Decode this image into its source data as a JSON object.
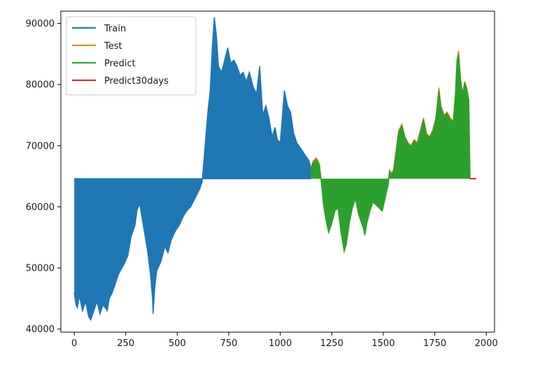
{
  "chart_data": {
    "type": "area",
    "title": "",
    "xlabel": "",
    "ylabel": "",
    "xlim": [
      -65,
      2040
    ],
    "ylim": [
      39500,
      92000
    ],
    "xticks": [
      0,
      250,
      500,
      750,
      1000,
      1250,
      1500,
      1750,
      2000
    ],
    "xtick_labels": [
      "0",
      "250",
      "500",
      "750",
      "1000",
      "1250",
      "1500",
      "1750",
      "2000"
    ],
    "yticks": [
      40000,
      50000,
      60000,
      70000,
      80000,
      90000
    ],
    "ytick_labels": [
      "40000",
      "50000",
      "60000",
      "70000",
      "80000",
      "90000"
    ],
    "baseline": 64600,
    "grid": false,
    "legend_position": "top-left",
    "series": [
      {
        "name": "Train",
        "color": "#1f77b4",
        "x": [
          0,
          8,
          15,
          25,
          40,
          55,
          70,
          80,
          95,
          110,
          125,
          140,
          160,
          170,
          185,
          200,
          215,
          240,
          260,
          275,
          295,
          305,
          318,
          330,
          340,
          355,
          370,
          380,
          383,
          390,
          400,
          420,
          440,
          455,
          470,
          490,
          510,
          530,
          550,
          565,
          580,
          595,
          610,
          620,
          628,
          640,
          650,
          660,
          670,
          680,
          690,
          700,
          715,
          730,
          745,
          760,
          775,
          790,
          805,
          820,
          835,
          850,
          870,
          885,
          900,
          915,
          930,
          945,
          960,
          975,
          985,
          1000,
          1020,
          1035,
          1050,
          1065,
          1080,
          1100,
          1120,
          1140,
          1150
        ],
        "values": [
          46000,
          44000,
          43500,
          45500,
          43000,
          44500,
          42000,
          41500,
          43000,
          44500,
          42500,
          44000,
          43000,
          45000,
          46000,
          47500,
          49000,
          50500,
          52000,
          55000,
          57000,
          59500,
          60500,
          58000,
          56000,
          53000,
          49000,
          45000,
          42500,
          46500,
          49500,
          51000,
          53500,
          52500,
          54500,
          56000,
          57000,
          58500,
          59500,
          60000,
          61000,
          62000,
          63000,
          64000,
          67000,
          72000,
          76000,
          79000,
          86000,
          91000,
          88000,
          83000,
          82000,
          84000,
          86000,
          83500,
          84000,
          83000,
          81500,
          82000,
          80500,
          82000,
          79500,
          78500,
          83000,
          75000,
          76500,
          74500,
          71500,
          73000,
          71000,
          70500,
          79000,
          76500,
          75500,
          72000,
          70500,
          69500,
          68500,
          67500,
          66000
        ]
      },
      {
        "name": "Test",
        "color": "#ff7f0e",
        "x": [
          1150,
          1160,
          1175,
          1190,
          1200,
          1210,
          1222,
          1235,
          1250,
          1265,
          1280,
          1295,
          1305,
          1310,
          1320,
          1335,
          1350,
          1365,
          1380,
          1395,
          1405,
          1410,
          1420,
          1435,
          1450,
          1465,
          1480,
          1495,
          1505,
          1515,
          1525,
          1530,
          1540,
          1550,
          1565,
          1575,
          1590,
          1605,
          1620,
          1635,
          1650,
          1665,
          1680,
          1695,
          1710,
          1725,
          1740,
          1755,
          1770,
          1780,
          1795,
          1810,
          1825,
          1840,
          1850,
          1858,
          1865,
          1875,
          1885,
          1895,
          1905,
          1915,
          1921
        ],
        "values": [
          66500,
          67500,
          68000,
          67000,
          64000,
          60500,
          58000,
          56000,
          57500,
          59500,
          60000,
          56000,
          54000,
          52500,
          54000,
          57500,
          60000,
          61500,
          59000,
          57500,
          56500,
          55500,
          57500,
          59500,
          61000,
          60500,
          60000,
          59500,
          61000,
          62500,
          64000,
          66000,
          65500,
          66000,
          70000,
          72500,
          73500,
          71500,
          70500,
          70000,
          71000,
          70500,
          72500,
          74500,
          72000,
          71500,
          72500,
          74500,
          79500,
          76500,
          75000,
          75500,
          74500,
          74000,
          78500,
          84000,
          85500,
          81000,
          78500,
          80500,
          79500,
          77500,
          64500
        ]
      },
      {
        "name": "Predict",
        "color": "#2ca02c",
        "x": [
          1150,
          1160,
          1175,
          1190,
          1200,
          1210,
          1222,
          1235,
          1250,
          1265,
          1280,
          1295,
          1305,
          1310,
          1320,
          1335,
          1350,
          1365,
          1380,
          1395,
          1405,
          1410,
          1420,
          1435,
          1450,
          1465,
          1480,
          1495,
          1505,
          1515,
          1525,
          1530,
          1540,
          1550,
          1565,
          1575,
          1590,
          1605,
          1620,
          1635,
          1650,
          1665,
          1680,
          1695,
          1710,
          1725,
          1740,
          1755,
          1770,
          1780,
          1795,
          1810,
          1825,
          1840,
          1850,
          1858,
          1865,
          1875,
          1885,
          1895,
          1905,
          1915,
          1921
        ],
        "values": [
          66300,
          67300,
          67800,
          66800,
          63800,
          60300,
          57800,
          55800,
          57300,
          59300,
          59800,
          55800,
          53800,
          52800,
          53800,
          57300,
          59800,
          61300,
          58800,
          57300,
          56300,
          55300,
          57300,
          59300,
          60800,
          60300,
          59800,
          59300,
          60800,
          62300,
          63800,
          65800,
          65300,
          65800,
          69800,
          72300,
          73300,
          71300,
          70300,
          69800,
          70800,
          70300,
          72300,
          74300,
          71800,
          71300,
          72300,
          74300,
          79000,
          76300,
          74800,
          75300,
          74300,
          73800,
          78300,
          83800,
          85000,
          80800,
          78300,
          80300,
          79300,
          77300,
          64500
        ]
      },
      {
        "name": "Predict30days",
        "color": "#d62728",
        "x": [
          1921,
          1951
        ],
        "values": [
          64600,
          64600
        ]
      }
    ]
  }
}
